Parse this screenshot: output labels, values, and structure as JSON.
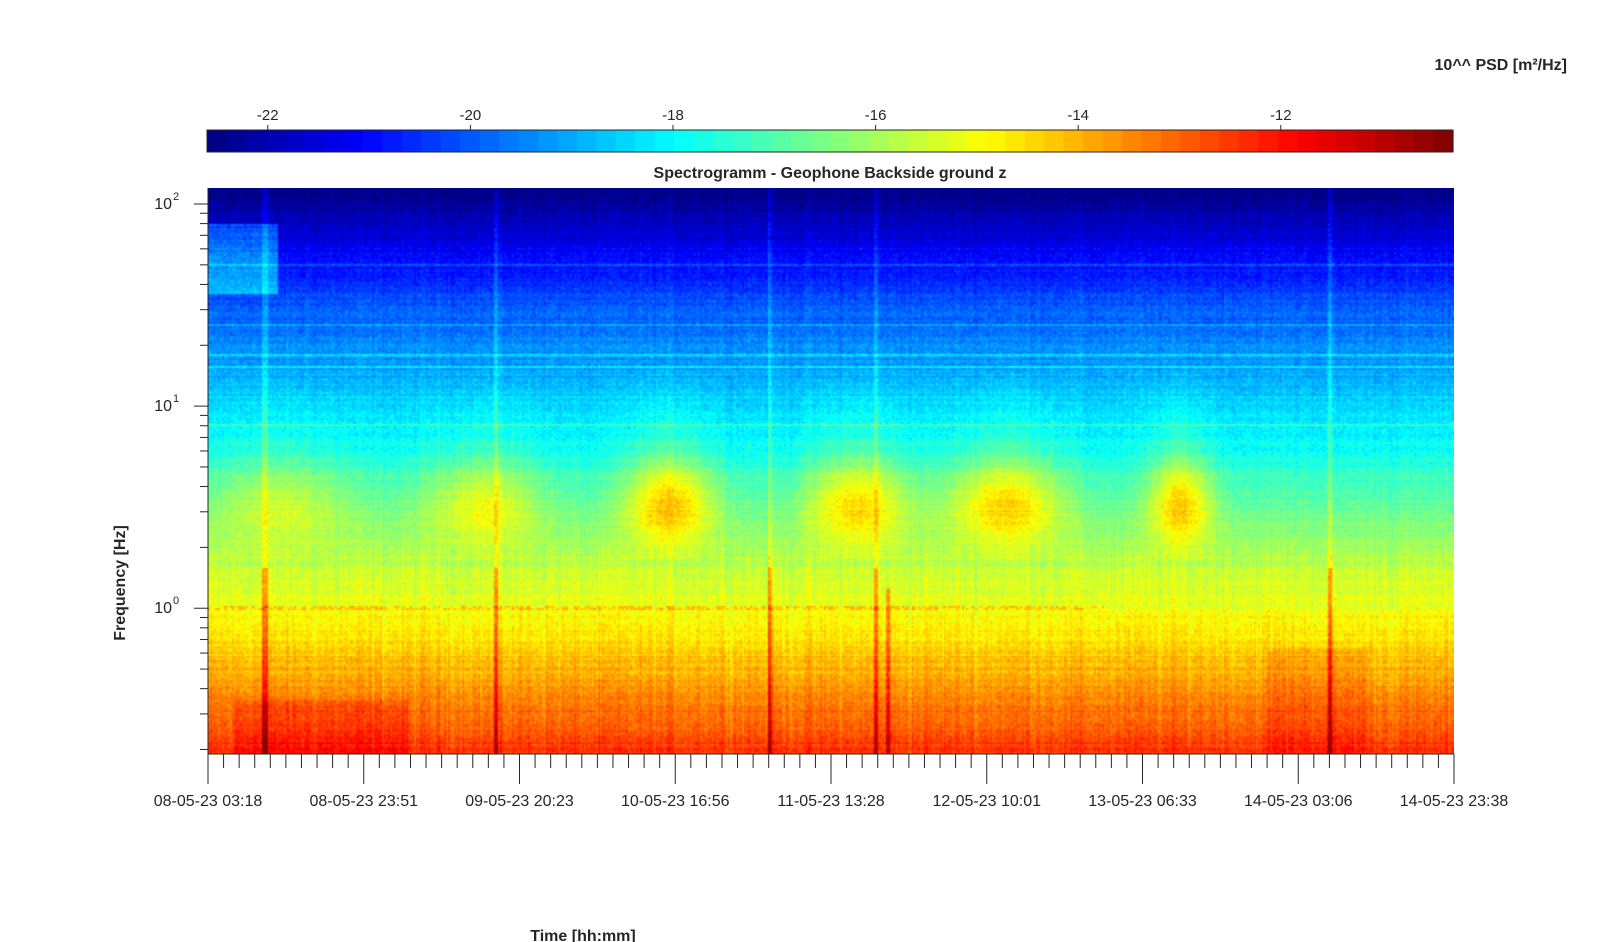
{
  "chart_data": {
    "type": "heatmap",
    "title": "Spectrogramm - Geophone Backside ground z",
    "xlabel": "Time [hh:mm]",
    "ylabel": "Frequency [Hz]",
    "y_scale": "log",
    "ylim": [
      0.19,
      120
    ],
    "y_ticks": [
      {
        "value": 1,
        "base": "10",
        "exp": "0"
      },
      {
        "value": 10,
        "base": "10",
        "exp": "1"
      },
      {
        "value": 100,
        "base": "10",
        "exp": "2"
      }
    ],
    "x_tick_labels": [
      "08-05-23 03:18",
      "08-05-23 23:51",
      "09-05-23 20:23",
      "10-05-23 16:56",
      "11-05-23 13:28",
      "12-05-23 10:01",
      "13-05-23 06:33",
      "14-05-23 03:06",
      "14-05-23 23:38"
    ],
    "colorbar": {
      "label": "10^^ PSD [m²/Hz]",
      "colormap": "jet",
      "range": [
        -22.6,
        -10.3
      ],
      "ticks": [
        -22,
        -20,
        -18,
        -16,
        -14,
        -12
      ],
      "tick_labels": [
        "-22",
        "-20",
        "-18",
        "-16",
        "-14",
        "-12"
      ]
    },
    "grid": false,
    "features": {
      "daytime_activity_bursts_hz": [
        2,
        6
      ],
      "persistent_line_hz": 1.0,
      "strongest_band_hz": [
        0.19,
        0.7
      ]
    }
  }
}
